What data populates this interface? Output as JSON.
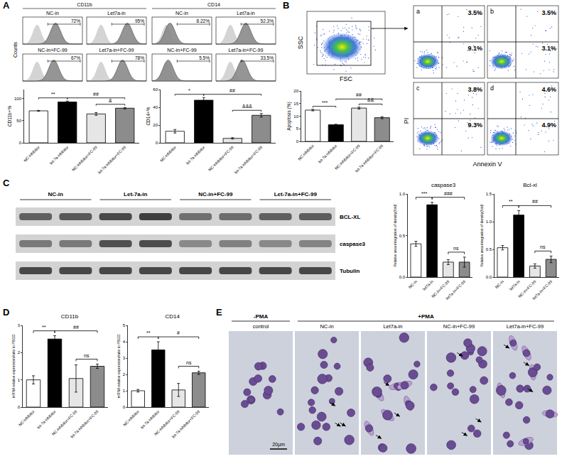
{
  "chart_data": [
    {
      "type": "bar",
      "y_label": "CD11b+%",
      "categories": [
        "NC-inhibitor",
        "let-7a inhibitor",
        "NC-inhibitor+FC-99",
        "let-7a inhibitor+FC-99"
      ],
      "values": [
        72,
        92,
        65,
        78
      ],
      "errors": [
        1,
        2,
        3,
        1.5
      ],
      "colors": [
        "#ffffff",
        "#000000",
        "#e6e6e6",
        "#8c8c8c"
      ],
      "ylim": [
        0,
        120
      ],
      "yticks": [
        0,
        50,
        100
      ],
      "grid": false,
      "annotations": [
        {
          "text": "**",
          "from": 0,
          "to": 1
        },
        {
          "text": "##",
          "from": 1,
          "to": 3
        },
        {
          "text": "&",
          "from": 2,
          "to": 3
        }
      ]
    },
    {
      "type": "bar",
      "y_label": "CD14+%",
      "categories": [
        "NC-inhibitor",
        "let-7a inhibitor",
        "NC-inhibitor+FC-99",
        "let-7a inhibitor+FC-99"
      ],
      "values": [
        13,
        48,
        5,
        31
      ],
      "errors": [
        2,
        3,
        0.8,
        2
      ],
      "colors": [
        "#ffffff",
        "#000000",
        "#e6e6e6",
        "#8c8c8c"
      ],
      "ylim": [
        0,
        60
      ],
      "yticks": [
        0,
        20,
        40,
        60
      ],
      "grid": false,
      "annotations": [
        {
          "text": "*",
          "from": 0,
          "to": 1
        },
        {
          "text": "##",
          "from": 1,
          "to": 3
        },
        {
          "text": "&&&",
          "from": 2,
          "to": 3
        }
      ]
    },
    {
      "type": "bar",
      "y_label": "Apoptosis (%)",
      "categories": [
        "NC-inhibitor",
        "let-7a inhibitor",
        "NC-inhibitor+FC-99",
        "let-7a inhibitor+FC-99"
      ],
      "values": [
        12.4,
        6.6,
        13.2,
        9.4
      ],
      "errors": [
        0.3,
        0.2,
        0.4,
        0.4
      ],
      "colors": [
        "#ffffff",
        "#000000",
        "#e6e6e6",
        "#8c8c8c"
      ],
      "ylim": [
        0,
        20
      ],
      "yticks": [
        0,
        5,
        10,
        15,
        20
      ],
      "grid": false,
      "annotations": [
        {
          "text": "***",
          "from": 0,
          "to": 1
        },
        {
          "text": "##",
          "from": 1,
          "to": 3
        },
        {
          "text": "&&",
          "from": 2,
          "to": 3
        }
      ]
    },
    {
      "type": "bar",
      "title": "caspase3",
      "y_label": "Relative area integration of density(fold)",
      "categories": [
        "NC-in",
        "let7a-in",
        "NC-in+FC-99",
        "let7a-in+FC-99"
      ],
      "values": [
        0.4,
        0.87,
        0.18,
        0.18
      ],
      "errors": [
        0.03,
        0.03,
        0.03,
        0.06
      ],
      "colors": [
        "#ffffff",
        "#000000",
        "#e6e6e6",
        "#8c8c8c"
      ],
      "ylim": [
        0,
        1.0
      ],
      "yticks": [
        {
          "value": 0,
          "label": "0.0"
        },
        {
          "value": 0.5,
          "label": "0.5"
        },
        {
          "value": 1.0,
          "label": "1.0"
        }
      ],
      "grid": false,
      "annotations": [
        {
          "text": "***",
          "from": 0,
          "to": 1
        },
        {
          "text": "###",
          "from": 1,
          "to": 3
        },
        {
          "text": "ns",
          "from": 2,
          "to": 3
        }
      ]
    },
    {
      "type": "bar",
      "title": "Bcl-xl",
      "y_label": "Relative area integration of density(fold)",
      "categories": [
        "NC-in",
        "let7a-in",
        "NC-in+FC-99",
        "let7a-in+FC-99"
      ],
      "values": [
        0.53,
        1.12,
        0.2,
        0.32
      ],
      "errors": [
        0.04,
        0.08,
        0.04,
        0.06
      ],
      "colors": [
        "#ffffff",
        "#000000",
        "#e6e6e6",
        "#8c8c8c"
      ],
      "ylim": [
        0,
        1.5
      ],
      "yticks": [
        {
          "value": 0,
          "label": "0.0"
        },
        {
          "value": 0.5,
          "label": "0.5"
        },
        {
          "value": 1.0,
          "label": "1.0"
        },
        {
          "value": 1.5,
          "label": "1.5"
        }
      ],
      "grid": false,
      "annotations": [
        {
          "text": "**",
          "from": 0,
          "to": 1
        },
        {
          "text": "##",
          "from": 1,
          "to": 3
        },
        {
          "text": "ns",
          "from": 2,
          "to": 3
        }
      ]
    },
    {
      "type": "bar",
      "title": "CD11b",
      "y_label": "mRNA relative expression/ratio to PBGD",
      "categories": [
        "NC-inhibitor",
        "let-7a inhibitor",
        "NC-inhibitor+FC-99",
        "let-7a inhibitor+FC-99"
      ],
      "values": [
        1.0,
        2.5,
        1.05,
        1.5
      ],
      "errors": [
        0.15,
        0.12,
        0.5,
        0.08
      ],
      "colors": [
        "#ffffff",
        "#000000",
        "#e6e6e6",
        "#8c8c8c"
      ],
      "ylim": [
        0,
        3
      ],
      "yticks": [
        0,
        1,
        2,
        3
      ],
      "grid": false,
      "annotations": [
        {
          "text": "**",
          "from": 0,
          "to": 1
        },
        {
          "text": "##",
          "from": 1,
          "to": 3
        },
        {
          "text": "ns",
          "from": 2,
          "to": 3
        }
      ]
    },
    {
      "type": "bar",
      "title": "CD14",
      "y_label": "mRNA relative expression/ratio to PBGD",
      "categories": [
        "NC-inhibitor",
        "let-7a inhibitor",
        "NC-inhibitor+FC-99",
        "let-7a inhibitor+FC-99"
      ],
      "values": [
        1.0,
        3.5,
        1.05,
        2.1
      ],
      "errors": [
        0.08,
        0.5,
        0.4,
        0.1
      ],
      "colors": [
        "#ffffff",
        "#000000",
        "#e6e6e6",
        "#8c8c8c"
      ],
      "ylim": [
        0,
        5
      ],
      "yticks": [
        0,
        1,
        2,
        3,
        4,
        5
      ],
      "grid": false,
      "annotations": [
        {
          "text": "**",
          "from": 0,
          "to": 1
        },
        {
          "text": "#",
          "from": 1,
          "to": 3
        },
        {
          "text": "ns",
          "from": 2,
          "to": 3
        }
      ]
    }
  ],
  "figure": {
    "panel_labels": [
      "A",
      "B",
      "C",
      "D",
      "E"
    ],
    "A": {
      "counts_label": "Counts",
      "groups": [
        {
          "title": "CD11b",
          "histograms": [
            {
              "label": "NC-in",
              "percent": "72%"
            },
            {
              "label": "Let7a-in",
              "percent": "95%"
            },
            {
              "label": "NC-in+FC-99",
              "percent": "67%"
            },
            {
              "label": "Let7a-in+FC-99",
              "percent": "78%"
            }
          ]
        },
        {
          "title": "CD14",
          "histograms": [
            {
              "label": "NC-in",
              "percent": "8.22%"
            },
            {
              "label": "Let7a-in",
              "percent": "52.3%"
            },
            {
              "label": "NC-in+FC-99",
              "percent": "5.5%"
            },
            {
              "label": "Let7a-in+FC-99",
              "percent": "33.5%"
            }
          ]
        }
      ]
    },
    "B": {
      "scatter": {
        "x_label": "FSC",
        "y_label": "SSC"
      },
      "quadrant_x_label": "Annexin V",
      "quadrant_y_label": "PI",
      "quadrants": [
        {
          "label": "a",
          "upper_right": "3.5%",
          "lower_right": "9.1%"
        },
        {
          "label": "b",
          "upper_right": "3.5%",
          "lower_right": "3.1%"
        },
        {
          "label": "c",
          "upper_right": "3.8%",
          "lower_right": "9.3%"
        },
        {
          "label": "d",
          "upper_right": "4.6%",
          "lower_right": "4.9%"
        }
      ]
    },
    "C": {
      "groups": [
        "NC-in",
        "Let-7a-in",
        "NC-in+FC-99",
        "Let-7a-in+FC-99"
      ],
      "rows": [
        "BCL-XL",
        "caspase3",
        "Tubulin"
      ]
    },
    "E": {
      "headers": [
        "-PMA",
        "+PMA"
      ],
      "images": [
        "control",
        "NC-in",
        "Let7a-in",
        "NC-in+FC-99",
        "Let7a-in+FC-99"
      ],
      "scale_bar": "20μm"
    }
  }
}
